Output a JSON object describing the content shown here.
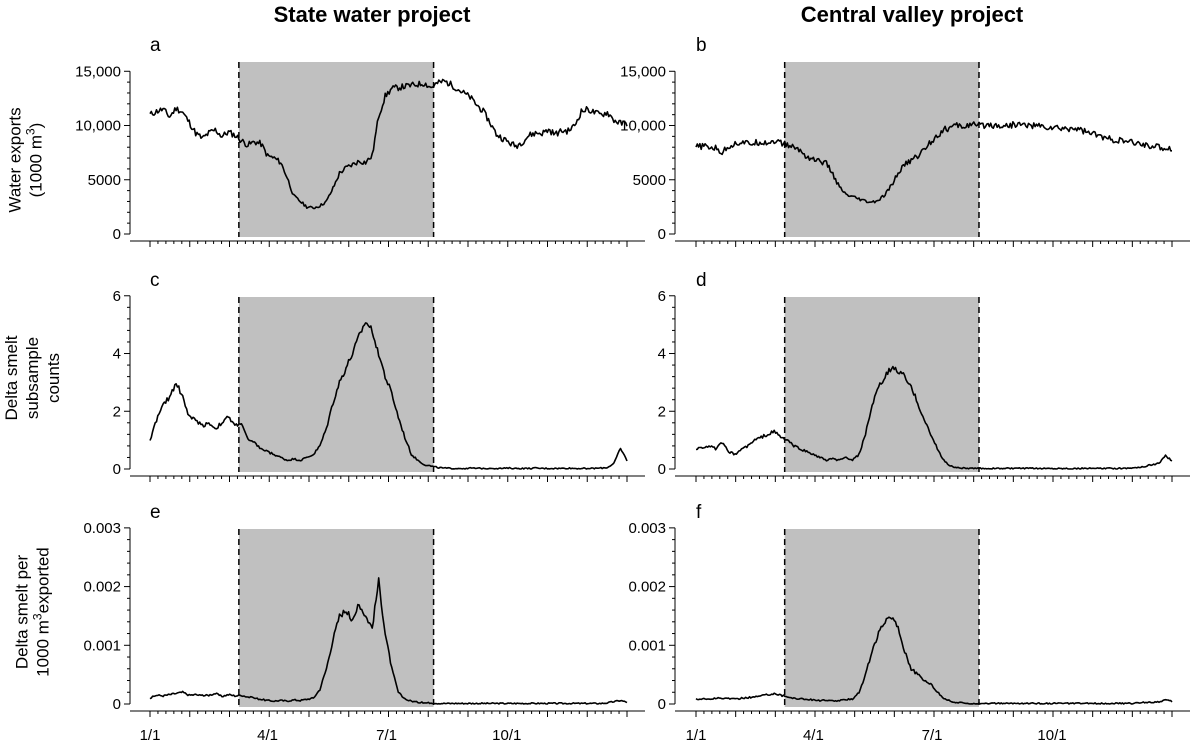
{
  "figure": {
    "column_titles": [
      "State water project",
      "Central valley project"
    ],
    "x_tick_labels": [
      "1/1",
      "4/1",
      "7/1",
      "10/1"
    ],
    "x_tick_days": [
      0,
      90,
      181,
      273
    ],
    "x_range": [
      0,
      365
    ],
    "shaded_period_days": [
      68,
      217
    ],
    "row_ylabels": [
      {
        "lines": [
          "Water exports",
          "(1000 m3)"
        ]
      },
      {
        "lines": [
          "Delta smelt",
          "subsample",
          "counts"
        ]
      },
      {
        "lines": [
          "Delta smelt per",
          "1000 m3exported"
        ]
      }
    ]
  },
  "chart_data": [
    {
      "type": "line",
      "panel": "a",
      "project": "State water project",
      "ylabel": "Water exports (1000 m³)",
      "ylim": [
        0,
        16500
      ],
      "yticks": [
        0,
        5000,
        10000,
        15000
      ],
      "ytick_labels": [
        "0",
        "5000",
        "10,000",
        "15,000"
      ],
      "x": [
        0,
        5,
        10,
        15,
        20,
        25,
        30,
        35,
        40,
        45,
        50,
        55,
        60,
        65,
        70,
        75,
        80,
        85,
        90,
        95,
        100,
        105,
        110,
        115,
        120,
        125,
        130,
        135,
        140,
        145,
        150,
        155,
        160,
        165,
        170,
        175,
        180,
        185,
        190,
        195,
        200,
        205,
        210,
        215,
        220,
        225,
        230,
        235,
        240,
        245,
        250,
        255,
        260,
        265,
        270,
        275,
        280,
        285,
        290,
        295,
        300,
        305,
        310,
        315,
        320,
        325,
        330,
        335,
        340,
        345,
        350,
        355,
        360,
        365
      ],
      "y": [
        11000,
        11300,
        11500,
        10800,
        11600,
        11200,
        10300,
        9300,
        8800,
        9300,
        9600,
        9000,
        9400,
        9100,
        8600,
        8200,
        8500,
        8300,
        7200,
        7000,
        6600,
        5200,
        3500,
        3000,
        2500,
        2400,
        2600,
        3000,
        4200,
        5600,
        6100,
        6400,
        6700,
        6600,
        7200,
        10900,
        12700,
        13400,
        13500,
        13600,
        13700,
        13800,
        13900,
        13500,
        13900,
        14100,
        13800,
        13400,
        13000,
        12600,
        11900,
        11300,
        10300,
        9200,
        8800,
        8400,
        8100,
        8500,
        9100,
        9300,
        9300,
        9600,
        9200,
        9500,
        9500,
        10000,
        11300,
        11500,
        11200,
        11000,
        11200,
        10500,
        10200,
        10200
      ]
    },
    {
      "type": "line",
      "panel": "b",
      "project": "Central valley project",
      "ylabel": "Water exports (1000 m³)",
      "ylim": [
        0,
        16500
      ],
      "yticks": [
        0,
        5000,
        10000,
        15000
      ],
      "ytick_labels": [
        "0",
        "5000",
        "10,000",
        "15,000"
      ],
      "x": [
        0,
        5,
        10,
        15,
        20,
        25,
        30,
        35,
        40,
        45,
        50,
        55,
        60,
        65,
        70,
        75,
        80,
        85,
        90,
        95,
        100,
        105,
        110,
        115,
        120,
        125,
        130,
        135,
        140,
        145,
        150,
        155,
        160,
        165,
        170,
        175,
        180,
        185,
        190,
        195,
        200,
        205,
        210,
        215,
        220,
        225,
        230,
        235,
        240,
        245,
        250,
        255,
        260,
        265,
        270,
        275,
        280,
        285,
        290,
        295,
        300,
        305,
        310,
        315,
        320,
        325,
        330,
        335,
        340,
        345,
        350,
        355,
        360,
        365
      ],
      "y": [
        8000,
        8100,
        8000,
        7900,
        7500,
        8100,
        8300,
        8500,
        8300,
        8400,
        8500,
        8400,
        8600,
        8400,
        8200,
        8000,
        7700,
        7100,
        6900,
        6700,
        6500,
        5500,
        4300,
        3600,
        3400,
        3200,
        3000,
        2900,
        3100,
        3600,
        4500,
        5600,
        6400,
        6800,
        7200,
        7800,
        8500,
        9100,
        9600,
        9800,
        10000,
        9900,
        10100,
        10000,
        10000,
        10100,
        10000,
        10000,
        10000,
        10100,
        10100,
        10000,
        10000,
        9900,
        9800,
        9800,
        9700,
        9700,
        9800,
        9600,
        9400,
        9200,
        9000,
        8800,
        8700,
        8600,
        8500,
        8400,
        8300,
        8200,
        8100,
        8000,
        7900,
        7900
      ]
    },
    {
      "type": "line",
      "panel": "c",
      "project": "State water project",
      "ylabel": "Delta smelt subsample counts",
      "ylim": [
        0,
        6.2
      ],
      "yticks": [
        0,
        2,
        4,
        6
      ],
      "ytick_labels": [
        "0",
        "2",
        "4",
        "6"
      ],
      "x": [
        0,
        5,
        10,
        15,
        20,
        25,
        30,
        35,
        40,
        45,
        50,
        55,
        60,
        65,
        70,
        75,
        80,
        85,
        90,
        95,
        100,
        105,
        110,
        115,
        120,
        125,
        130,
        135,
        140,
        145,
        150,
        155,
        160,
        165,
        170,
        175,
        180,
        185,
        190,
        195,
        200,
        205,
        210,
        215,
        220,
        225,
        230,
        235,
        240,
        245,
        250,
        255,
        260,
        265,
        270,
        275,
        280,
        285,
        290,
        295,
        300,
        305,
        310,
        315,
        320,
        325,
        330,
        335,
        340,
        345,
        350,
        355,
        360,
        365
      ],
      "y": [
        1.0,
        1.7,
        2.2,
        2.5,
        3.0,
        2.5,
        1.8,
        1.7,
        1.5,
        1.6,
        1.4,
        1.6,
        1.8,
        1.5,
        1.6,
        1.0,
        0.9,
        0.7,
        0.6,
        0.5,
        0.4,
        0.3,
        0.35,
        0.3,
        0.4,
        0.5,
        0.8,
        1.4,
        2.3,
        3.0,
        3.5,
        4.0,
        4.6,
        5.1,
        4.8,
        4.0,
        3.2,
        2.6,
        1.8,
        1.1,
        0.5,
        0.3,
        0.15,
        0.1,
        0.05,
        0.03,
        0.02,
        0.02,
        0.02,
        0.03,
        0.02,
        0.02,
        0.03,
        0.02,
        0.02,
        0.03,
        0.02,
        0.02,
        0.02,
        0.03,
        0.02,
        0.02,
        0.02,
        0.02,
        0.03,
        0.02,
        0.02,
        0.02,
        0.02,
        0.03,
        0.05,
        0.2,
        0.7,
        0.3
      ]
    },
    {
      "type": "line",
      "panel": "d",
      "project": "Central valley project",
      "ylabel": "Delta smelt subsample counts",
      "ylim": [
        0,
        6.2
      ],
      "yticks": [
        0,
        2,
        4,
        6
      ],
      "ytick_labels": [
        "0",
        "2",
        "4",
        "6"
      ],
      "x": [
        0,
        5,
        10,
        15,
        20,
        25,
        30,
        35,
        40,
        45,
        50,
        55,
        60,
        65,
        70,
        75,
        80,
        85,
        90,
        95,
        100,
        105,
        110,
        115,
        120,
        125,
        130,
        135,
        140,
        145,
        150,
        155,
        160,
        165,
        170,
        175,
        180,
        185,
        190,
        195,
        200,
        205,
        210,
        215,
        220,
        225,
        230,
        235,
        240,
        245,
        250,
        255,
        260,
        265,
        270,
        275,
        280,
        285,
        290,
        295,
        300,
        305,
        310,
        315,
        320,
        325,
        330,
        335,
        340,
        345,
        350,
        355,
        360,
        365
      ],
      "y": [
        0.7,
        0.75,
        0.8,
        0.7,
        0.9,
        0.6,
        0.5,
        0.7,
        0.8,
        1.0,
        1.1,
        1.2,
        1.3,
        1.1,
        1.0,
        0.8,
        0.7,
        0.6,
        0.5,
        0.4,
        0.3,
        0.35,
        0.3,
        0.4,
        0.3,
        0.5,
        1.2,
        2.2,
        2.8,
        3.2,
        3.5,
        3.4,
        3.2,
        2.8,
        2.3,
        1.7,
        1.2,
        0.7,
        0.3,
        0.1,
        0.05,
        0.03,
        0.02,
        0.02,
        0.02,
        0.02,
        0.02,
        0.02,
        0.02,
        0.02,
        0.02,
        0.02,
        0.02,
        0.02,
        0.02,
        0.02,
        0.02,
        0.02,
        0.02,
        0.02,
        0.02,
        0.02,
        0.02,
        0.02,
        0.02,
        0.02,
        0.03,
        0.05,
        0.05,
        0.1,
        0.15,
        0.2,
        0.45,
        0.3
      ]
    },
    {
      "type": "line",
      "panel": "e",
      "project": "State water project",
      "ylabel": "Delta smelt per 1000 m³ exported",
      "ylim": [
        0,
        0.0031
      ],
      "yticks": [
        0,
        0.001,
        0.002,
        0.003
      ],
      "ytick_labels": [
        "0",
        "0.001",
        "0.002",
        "0.003"
      ],
      "x": [
        0,
        5,
        10,
        15,
        20,
        25,
        30,
        35,
        40,
        45,
        50,
        55,
        60,
        65,
        70,
        75,
        80,
        85,
        90,
        95,
        100,
        105,
        110,
        115,
        120,
        125,
        130,
        135,
        140,
        145,
        150,
        155,
        160,
        165,
        170,
        175,
        180,
        185,
        190,
        195,
        200,
        205,
        210,
        215,
        220,
        225,
        230,
        235,
        240,
        245,
        250,
        255,
        260,
        265,
        270,
        275,
        280,
        285,
        290,
        295,
        300,
        305,
        310,
        315,
        320,
        325,
        330,
        335,
        340,
        345,
        350,
        355,
        360,
        365
      ],
      "y": [
        0.0001,
        0.00015,
        0.00014,
        0.00016,
        0.00018,
        0.0002,
        0.00015,
        0.00016,
        0.00014,
        0.00015,
        0.00018,
        0.00013,
        0.00016,
        0.00014,
        0.00015,
        0.00012,
        0.0001,
        8e-05,
        6e-05,
        5e-05,
        6e-05,
        5e-05,
        7e-05,
        6e-05,
        8e-05,
        0.0001,
        0.00025,
        0.0006,
        0.0011,
        0.0015,
        0.0016,
        0.0014,
        0.0017,
        0.0015,
        0.0013,
        0.0021,
        0.0012,
        0.0006,
        0.0002,
        8e-05,
        5e-05,
        3e-05,
        2e-05,
        2e-05,
        1e-05,
        1e-05,
        1e-05,
        1e-05,
        1e-05,
        1e-05,
        1e-05,
        1e-05,
        1e-05,
        1e-05,
        1e-05,
        1e-05,
        1e-05,
        1e-05,
        1e-05,
        1e-05,
        1e-05,
        1e-05,
        1e-05,
        1e-05,
        1e-05,
        1e-05,
        1e-05,
        1e-05,
        1e-05,
        1e-05,
        2e-05,
        4e-05,
        6e-05,
        3e-05
      ]
    },
    {
      "type": "line",
      "panel": "f",
      "project": "Central valley project",
      "ylabel": "Delta smelt per 1000 m³ exported",
      "ylim": [
        0,
        0.0031
      ],
      "yticks": [
        0,
        0.001,
        0.002,
        0.003
      ],
      "ytick_labels": [
        "0",
        "0.001",
        "0.002",
        "0.003"
      ],
      "x": [
        0,
        5,
        10,
        15,
        20,
        25,
        30,
        35,
        40,
        45,
        50,
        55,
        60,
        65,
        70,
        75,
        80,
        85,
        90,
        95,
        100,
        105,
        110,
        115,
        120,
        125,
        130,
        135,
        140,
        145,
        150,
        155,
        160,
        165,
        170,
        175,
        180,
        185,
        190,
        195,
        200,
        205,
        210,
        215,
        220,
        225,
        230,
        235,
        240,
        245,
        250,
        255,
        260,
        265,
        270,
        275,
        280,
        285,
        290,
        295,
        300,
        305,
        310,
        315,
        320,
        325,
        330,
        335,
        340,
        345,
        350,
        355,
        360,
        365
      ],
      "y": [
        8e-05,
        9e-05,
        8e-05,
        0.0001,
        9e-05,
        0.0001,
        8e-05,
        0.0001,
        0.00011,
        0.00012,
        0.00014,
        0.00016,
        0.00018,
        0.00015,
        0.00012,
        0.0001,
        9e-05,
        8e-05,
        7e-05,
        6e-05,
        6e-05,
        5e-05,
        6e-05,
        7e-05,
        9e-05,
        0.0002,
        0.0005,
        0.0009,
        0.0012,
        0.0014,
        0.0015,
        0.0013,
        0.0009,
        0.0006,
        0.0005,
        0.0004,
        0.00035,
        0.0002,
        0.0001,
        5e-05,
        2e-05,
        2e-05,
        1e-05,
        1e-05,
        1e-05,
        1e-05,
        1e-05,
        1e-05,
        1e-05,
        1e-05,
        1e-05,
        1e-05,
        1e-05,
        1e-05,
        1e-05,
        1e-05,
        1e-05,
        1e-05,
        1e-05,
        1e-05,
        1e-05,
        1e-05,
        1e-05,
        1e-05,
        1e-05,
        1e-05,
        1e-05,
        1e-05,
        2e-05,
        3e-05,
        3e-05,
        4e-05,
        7e-05,
        4e-05
      ]
    }
  ]
}
